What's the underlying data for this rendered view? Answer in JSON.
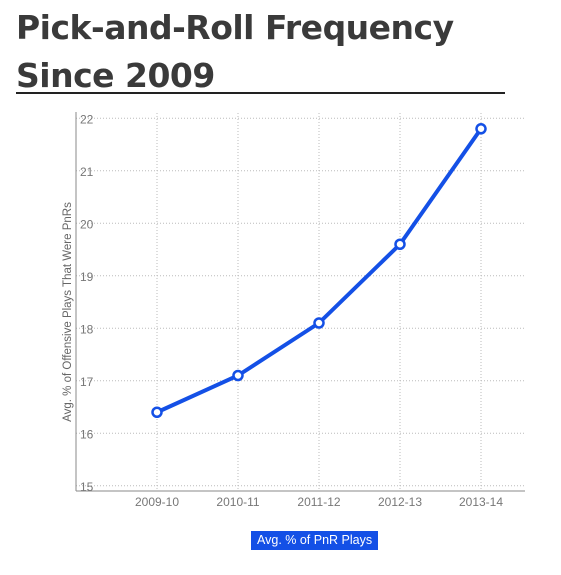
{
  "header": {
    "title": "Pick-and-Roll Frequency Since 2009"
  },
  "chart_data": {
    "type": "line",
    "title": "Pick-and-Roll Frequency Since 2009",
    "xlabel": "",
    "ylabel": "Avg. % of Offensive Plays That Were PnRs",
    "categories": [
      "2009-10",
      "2010-11",
      "2011-12",
      "2012-13",
      "2013-14"
    ],
    "yticks": [
      15,
      16,
      17,
      18,
      19,
      20,
      21,
      22
    ],
    "ylim": [
      14.9,
      22.1
    ],
    "grid": true,
    "legend_position": "bottom-center",
    "series": [
      {
        "name": "Avg. % of PnR Plays",
        "color": "#1450e6",
        "values": [
          16.4,
          17.1,
          18.1,
          19.6,
          21.8
        ]
      }
    ]
  },
  "colors": {
    "series_line": "#1450e6",
    "grid": "#bbbbbb",
    "axis": "#888888",
    "title_text": "#3a3a3a"
  }
}
